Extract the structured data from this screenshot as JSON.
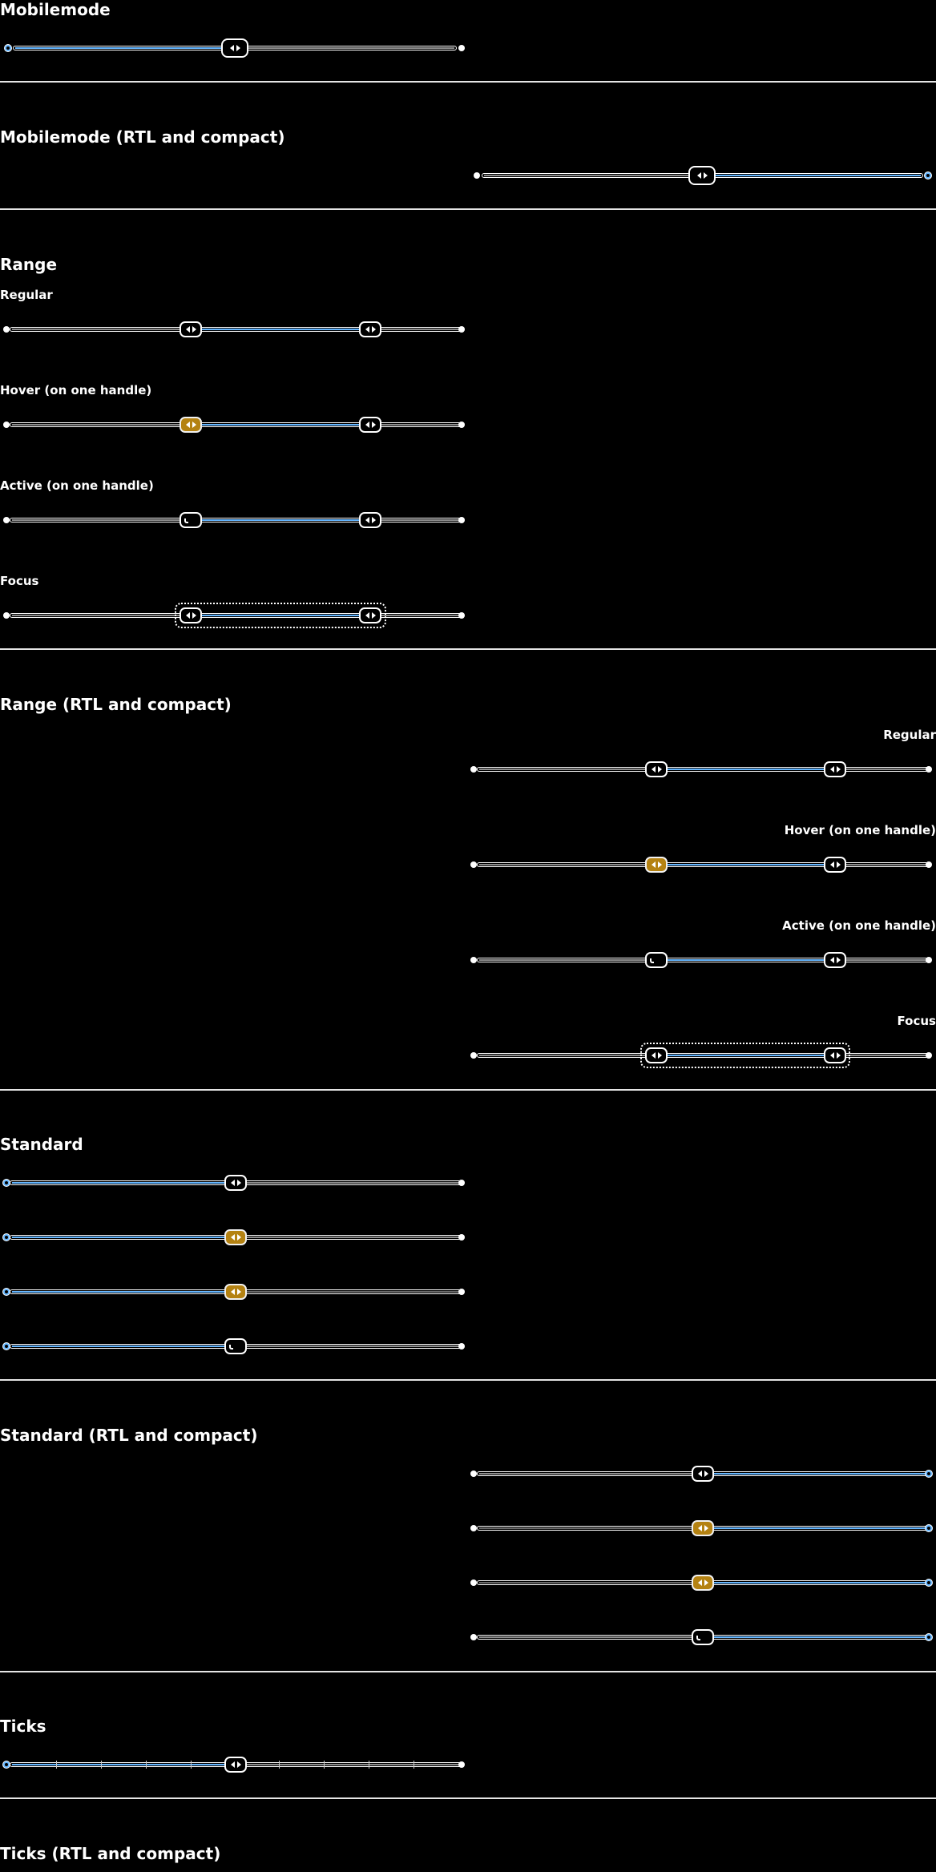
{
  "sections": {
    "mobilemode": "Mobilemode",
    "mobilemode_rtl": "Mobilemode (RTL and compact)",
    "range": "Range",
    "range_rtl": "Range (RTL and compact)",
    "standard": "Standard",
    "standard_rtl": "Standard (RTL and compact)",
    "ticks": "Ticks",
    "ticks_rtl": "Ticks (RTL and compact)"
  },
  "range_states": {
    "regular": "Regular",
    "hover": "Hover (on one handle)",
    "active": "Active (on one handle)",
    "focus": "Focus"
  },
  "values": {
    "single": 0.5,
    "range_low": 0.4,
    "range_high": 0.8
  },
  "colors": {
    "accent": "#65b6ff",
    "hover": "#b48212",
    "background": "#000000",
    "foreground": "#ffffff"
  },
  "icons": {
    "handle": "left-right-arrows-icon"
  }
}
